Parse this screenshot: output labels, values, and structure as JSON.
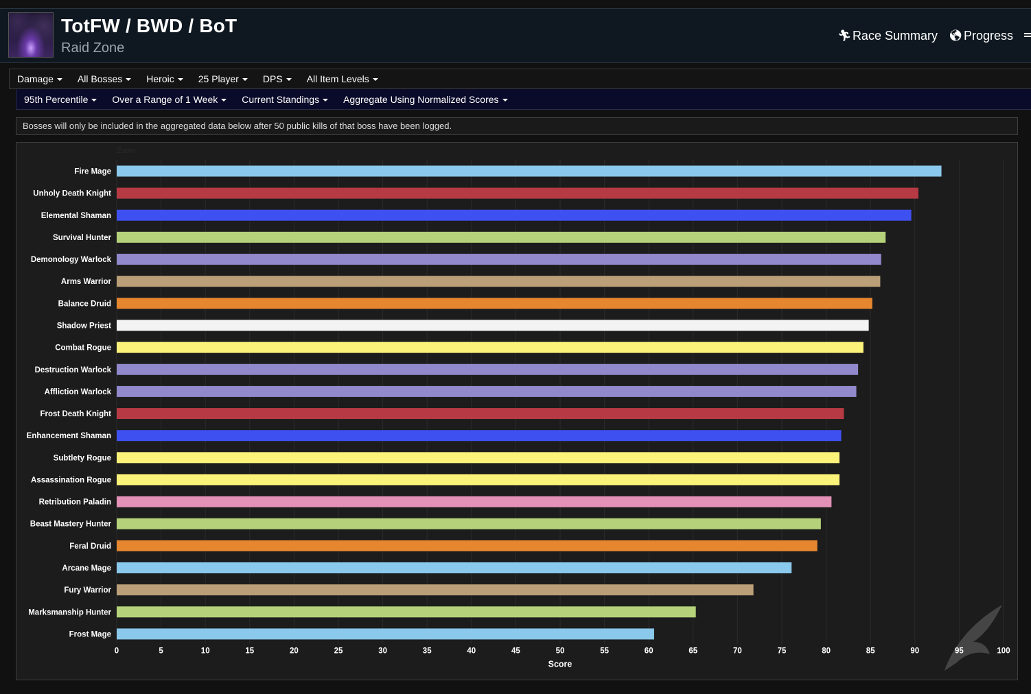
{
  "header": {
    "title": "TotFW / BWD / BoT",
    "subtitle": "Raid Zone",
    "links": [
      {
        "label": "Race Summary",
        "icon": "running-icon"
      },
      {
        "label": "Progress",
        "icon": "globe-icon"
      }
    ]
  },
  "filters_row1": [
    "Damage",
    "All Bosses",
    "Heroic",
    "25 Player",
    "DPS",
    "All Item Levels"
  ],
  "filters_row2": [
    "95th Percentile",
    "Over a Range of 1 Week",
    "Current Standings",
    "Aggregate Using Normalized Scores"
  ],
  "notice": "Bosses will only be included in the aggregated data below after 50 public kills of that boss have been logged.",
  "chart_data": {
    "type": "bar",
    "orientation": "horizontal",
    "zoom_label": "Zoom",
    "xlabel": "Score",
    "xlim": [
      0,
      100
    ],
    "xticks": [
      0,
      5,
      10,
      15,
      20,
      25,
      30,
      35,
      40,
      45,
      50,
      55,
      60,
      65,
      70,
      75,
      80,
      85,
      90,
      95,
      100
    ],
    "grid": true,
    "bars": [
      {
        "label": "Fire Mage",
        "value": 93.0,
        "color": "#8ac8ec"
      },
      {
        "label": "Unholy Death Knight",
        "value": 90.4,
        "color": "#b53a43"
      },
      {
        "label": "Elemental Shaman",
        "value": 89.6,
        "color": "#3e50f0"
      },
      {
        "label": "Survival Hunter",
        "value": 86.7,
        "color": "#b5d27a"
      },
      {
        "label": "Demonology Warlock",
        "value": 86.2,
        "color": "#9189cc"
      },
      {
        "label": "Arms Warrior",
        "value": 86.1,
        "color": "#bb9f78"
      },
      {
        "label": "Balance Druid",
        "value": 85.2,
        "color": "#e6862f"
      },
      {
        "label": "Shadow Priest",
        "value": 84.8,
        "color": "#f3f3f3"
      },
      {
        "label": "Combat Rogue",
        "value": 84.2,
        "color": "#fbf27a"
      },
      {
        "label": "Destruction Warlock",
        "value": 83.6,
        "color": "#9189cc"
      },
      {
        "label": "Affliction Warlock",
        "value": 83.4,
        "color": "#9189cc"
      },
      {
        "label": "Frost Death Knight",
        "value": 82.0,
        "color": "#b53a43"
      },
      {
        "label": "Enhancement Shaman",
        "value": 81.7,
        "color": "#3e50f0"
      },
      {
        "label": "Subtlety Rogue",
        "value": 81.5,
        "color": "#fbf27a"
      },
      {
        "label": "Assassination Rogue",
        "value": 81.5,
        "color": "#fbf27a"
      },
      {
        "label": "Retribution Paladin",
        "value": 80.6,
        "color": "#e391b7"
      },
      {
        "label": "Beast Mastery Hunter",
        "value": 79.4,
        "color": "#b5d27a"
      },
      {
        "label": "Feral Druid",
        "value": 79.0,
        "color": "#e6862f"
      },
      {
        "label": "Arcane Mage",
        "value": 76.1,
        "color": "#8ac8ec"
      },
      {
        "label": "Fury Warrior",
        "value": 71.8,
        "color": "#bb9f78"
      },
      {
        "label": "Marksmanship Hunter",
        "value": 65.3,
        "color": "#b5d27a"
      },
      {
        "label": "Frost Mage",
        "value": 60.6,
        "color": "#8ac8ec"
      }
    ]
  }
}
